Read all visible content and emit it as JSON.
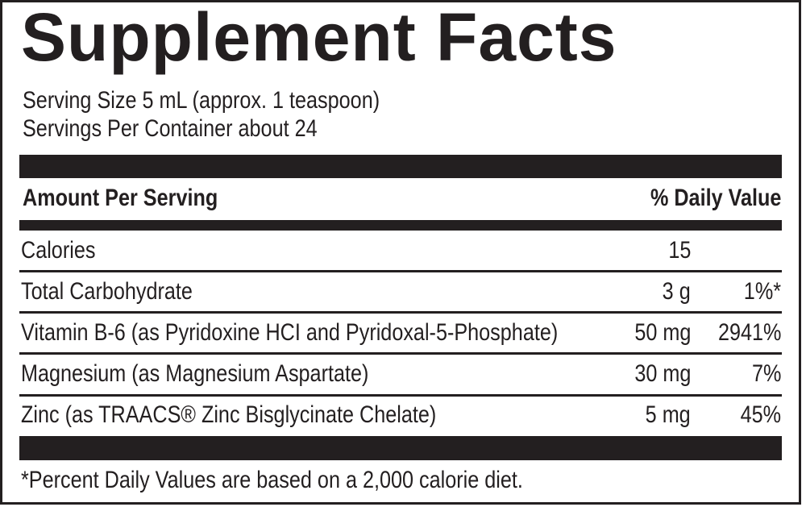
{
  "title": "Supplement Facts",
  "serving_size": "Serving Size 5 mL (approx. 1 teaspoon)",
  "servings_per_container": "Servings Per Container about 24",
  "header": {
    "amount": "Amount Per Serving",
    "dv": "% Daily Value"
  },
  "rows": [
    {
      "name": "Calories",
      "amount": "15",
      "dv": ""
    },
    {
      "name": "Total Carbohydrate",
      "amount": "3 g",
      "dv": "1%*"
    },
    {
      "name": "Vitamin B-6 (as Pyridoxine HCI and Pyridoxal-5-Phosphate)",
      "amount": "50 mg",
      "dv": "2941%"
    },
    {
      "name": "Magnesium (as Magnesium Aspartate)",
      "amount": "30 mg",
      "dv": "7%"
    },
    {
      "name": "Zinc (as TRAACS® Zinc Bisglycinate Chelate)",
      "amount": "5 mg",
      "dv": "45%"
    }
  ],
  "footnote": "*Percent Daily Values are based on a 2,000 calorie diet.",
  "colors": {
    "ink": "#231f20",
    "background": "#ffffff"
  }
}
